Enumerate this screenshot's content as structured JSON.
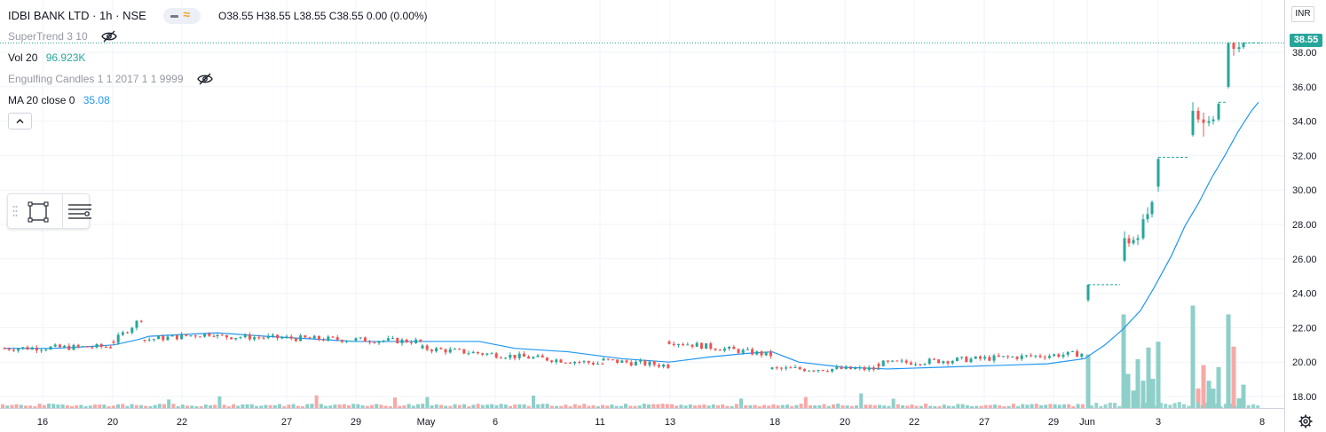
{
  "header": {
    "symbol": "IDBI BANK LTD · 1h · NSE",
    "ohlc": "O38.55 H38.55 L38.55 C38.55 0.00 (0.00%)"
  },
  "indicators": {
    "supertrend": {
      "label": "SuperTrend 3 10"
    },
    "volume": {
      "label": "Vol 20",
      "value": "96.923K"
    },
    "engulfing": {
      "label": "Engulfing Candles 1 1 2017 1 1 9999"
    },
    "ma": {
      "label": "MA 20 close 0",
      "value": "35.08"
    }
  },
  "price_axis": {
    "currency": "INR",
    "last_price": "38.55"
  },
  "colors": {
    "up": "#26a69a",
    "down": "#ef5350",
    "ma": "#2196f3",
    "vol_up": "#8ecfc9",
    "vol_down": "#f7a9a7",
    "supertrend": "#26a69a"
  },
  "chart_data": {
    "type": "candlestick",
    "symbol": "IDBI BANK LTD",
    "interval": "1h",
    "exchange": "NSE",
    "y_ticks": [
      "18.00",
      "20.00",
      "22.00",
      "24.00",
      "26.00",
      "28.00",
      "30.00",
      "32.00",
      "34.00",
      "36.00",
      "38.00"
    ],
    "ylim": [
      17.3,
      39.5
    ],
    "x_ticks": [
      {
        "label": "16",
        "x": 48
      },
      {
        "label": "20",
        "x": 127
      },
      {
        "label": "22",
        "x": 205
      },
      {
        "label": "27",
        "x": 323
      },
      {
        "label": "29",
        "x": 401
      },
      {
        "label": "May",
        "x": 480
      },
      {
        "label": "6",
        "x": 558
      },
      {
        "label": "11",
        "x": 676
      },
      {
        "label": "13",
        "x": 755
      },
      {
        "label": "18",
        "x": 873
      },
      {
        "label": "20",
        "x": 952
      },
      {
        "label": "22",
        "x": 1030
      },
      {
        "label": "27",
        "x": 1109
      },
      {
        "label": "29",
        "x": 1187
      },
      {
        "label": "Jun",
        "x": 1225
      },
      {
        "label": "3",
        "x": 1305
      },
      {
        "label": "8",
        "x": 1422
      }
    ],
    "segments": [
      {
        "x0": 5,
        "x1": 128,
        "start": 20.8,
        "end": 20.9
      },
      {
        "x0": 128,
        "x1": 163,
        "start": 21.2,
        "end": 22.7
      },
      {
        "x0": 163,
        "x1": 245,
        "start": 21.3,
        "end": 21.7
      },
      {
        "x0": 245,
        "x1": 476,
        "start": 21.5,
        "end": 21.2
      },
      {
        "x0": 476,
        "x1": 680,
        "start": 20.8,
        "end": 19.9
      },
      {
        "x0": 680,
        "x1": 754,
        "start": 20.1,
        "end": 19.8
      },
      {
        "x0": 754,
        "x1": 870,
        "start": 21.2,
        "end": 20.4
      },
      {
        "x0": 870,
        "x1": 990,
        "start": 19.6,
        "end": 19.6
      },
      {
        "x0": 990,
        "x1": 1222,
        "start": 19.9,
        "end": 20.5
      }
    ],
    "breakout_candles": [
      {
        "x": 1226,
        "o": 23.6,
        "h": 24.5,
        "l": 23.5,
        "c": 24.5
      },
      {
        "x": 1267,
        "o": 25.9,
        "h": 27.6,
        "l": 25.8,
        "c": 27.2
      },
      {
        "x": 1272,
        "o": 27.2,
        "h": 27.4,
        "l": 26.7,
        "c": 26.9
      },
      {
        "x": 1277,
        "o": 26.9,
        "h": 27.3,
        "l": 26.8,
        "c": 27.1
      },
      {
        "x": 1282,
        "o": 27.1,
        "h": 27.4,
        "l": 26.8,
        "c": 27.2
      },
      {
        "x": 1288,
        "o": 27.2,
        "h": 28.6,
        "l": 27.1,
        "c": 28.3
      },
      {
        "x": 1293,
        "o": 28.3,
        "h": 29.0,
        "l": 28.1,
        "c": 28.6
      },
      {
        "x": 1298,
        "o": 28.6,
        "h": 29.4,
        "l": 28.4,
        "c": 29.3
      },
      {
        "x": 1305,
        "o": 30.2,
        "h": 31.9,
        "l": 29.9,
        "c": 31.8
      },
      {
        "x": 1344,
        "o": 33.2,
        "h": 35.1,
        "l": 33.1,
        "c": 34.6
      },
      {
        "x": 1350,
        "o": 34.6,
        "h": 34.8,
        "l": 33.9,
        "c": 34.1
      },
      {
        "x": 1356,
        "o": 34.1,
        "h": 34.5,
        "l": 33.1,
        "c": 33.9
      },
      {
        "x": 1362,
        "o": 33.9,
        "h": 34.3,
        "l": 33.7,
        "c": 34.0
      },
      {
        "x": 1367,
        "o": 34.0,
        "h": 34.3,
        "l": 33.8,
        "c": 34.1
      },
      {
        "x": 1373,
        "o": 34.1,
        "h": 35.1,
        "l": 34.0,
        "c": 35.0
      },
      {
        "x": 1384,
        "o": 36.0,
        "h": 38.6,
        "l": 35.9,
        "c": 38.55
      },
      {
        "x": 1390,
        "o": 38.55,
        "h": 38.6,
        "l": 37.8,
        "c": 38.2
      },
      {
        "x": 1396,
        "o": 38.2,
        "h": 38.6,
        "l": 38.0,
        "c": 38.3
      },
      {
        "x": 1401,
        "o": 38.3,
        "h": 38.6,
        "l": 38.2,
        "c": 38.55
      }
    ],
    "ma20": [
      [
        5,
        20.8
      ],
      [
        60,
        20.8
      ],
      [
        100,
        20.9
      ],
      [
        128,
        21.0
      ],
      [
        155,
        21.3
      ],
      [
        168,
        21.5
      ],
      [
        205,
        21.6
      ],
      [
        245,
        21.7
      ],
      [
        300,
        21.5
      ],
      [
        400,
        21.2
      ],
      [
        476,
        21.2
      ],
      [
        540,
        21.2
      ],
      [
        580,
        20.8
      ],
      [
        640,
        20.6
      ],
      [
        700,
        20.2
      ],
      [
        754,
        20.0
      ],
      [
        800,
        20.3
      ],
      [
        840,
        20.5
      ],
      [
        870,
        20.6
      ],
      [
        900,
        20.0
      ],
      [
        950,
        19.7
      ],
      [
        1000,
        19.6
      ],
      [
        1060,
        19.7
      ],
      [
        1120,
        19.8
      ],
      [
        1180,
        19.9
      ],
      [
        1222,
        20.2
      ],
      [
        1245,
        21.0
      ],
      [
        1265,
        21.9
      ],
      [
        1285,
        23.0
      ],
      [
        1300,
        24.3
      ],
      [
        1320,
        26.2
      ],
      [
        1335,
        27.9
      ],
      [
        1350,
        29.2
      ],
      [
        1365,
        30.7
      ],
      [
        1380,
        32.0
      ],
      [
        1395,
        33.4
      ],
      [
        1410,
        34.6
      ],
      [
        1418,
        35.1
      ]
    ],
    "supertrend_stops": [
      {
        "x0": 1226,
        "x1": 1262,
        "y": 24.5
      },
      {
        "x0": 1305,
        "x1": 1340,
        "y": 31.9
      },
      {
        "x0": 1373,
        "x1": 1381,
        "y": 35.1
      },
      {
        "x0": 1401,
        "x1": 1422,
        "y": 38.55
      }
    ],
    "volume_spikes": [
      {
        "x": 1226,
        "v": 0.55,
        "up": true
      },
      {
        "x": 1266,
        "v": 0.96,
        "up": true
      },
      {
        "x": 1271,
        "v": 0.35,
        "up": true
      },
      {
        "x": 1277,
        "v": 0.18,
        "up": true
      },
      {
        "x": 1282,
        "v": 0.5,
        "up": true
      },
      {
        "x": 1288,
        "v": 0.28,
        "up": true
      },
      {
        "x": 1294,
        "v": 0.62,
        "up": true
      },
      {
        "x": 1299,
        "v": 0.3,
        "up": true
      },
      {
        "x": 1305,
        "v": 0.68,
        "up": true
      },
      {
        "x": 1344,
        "v": 1.05,
        "up": true
      },
      {
        "x": 1350,
        "v": 0.2,
        "up": false
      },
      {
        "x": 1356,
        "v": 0.44,
        "up": false
      },
      {
        "x": 1362,
        "v": 0.28,
        "up": true
      },
      {
        "x": 1367,
        "v": 0.2,
        "up": true
      },
      {
        "x": 1373,
        "v": 0.42,
        "up": true
      },
      {
        "x": 1384,
        "v": 0.96,
        "up": true
      },
      {
        "x": 1390,
        "v": 0.63,
        "up": false
      },
      {
        "x": 1396,
        "v": 0.1,
        "up": true
      },
      {
        "x": 1401,
        "v": 0.24,
        "up": true
      }
    ]
  }
}
